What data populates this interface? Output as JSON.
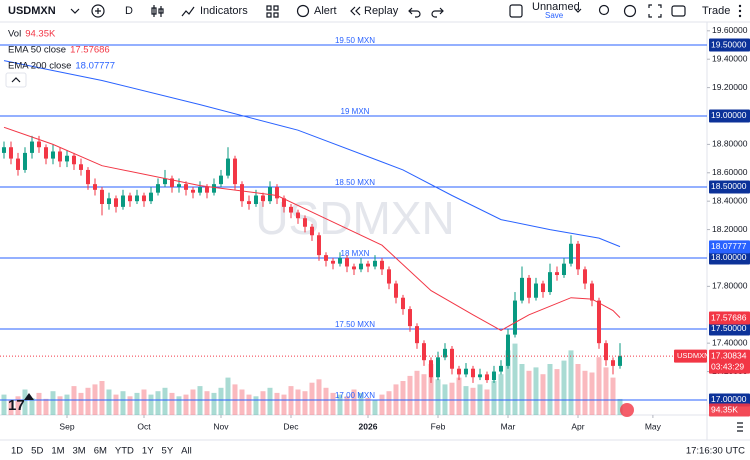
{
  "toolbar": {
    "symbol": "USDMXN",
    "interval": "D",
    "indicators": "Indicators",
    "alert": "Alert",
    "replay": "Replay",
    "layout": "Unnamed",
    "layout_status": "Save",
    "trade": "Trade"
  },
  "range_buttons": [
    "1D",
    "5D",
    "1M",
    "3M",
    "6M",
    "YTD",
    "1Y",
    "5Y",
    "All"
  ],
  "clock": "17:16:30 UTC",
  "chart_data": {
    "type": "candlestick",
    "up_color": "#089981",
    "down_color": "#f23645",
    "xlim": [
      -0.57,
      99.43
    ],
    "xticks": [
      {
        "value": 9,
        "label": "Sep"
      },
      {
        "value": 20,
        "label": "Oct"
      },
      {
        "value": 31,
        "label": "Nov"
      },
      {
        "value": 41,
        "label": "Dec"
      },
      {
        "value": 52,
        "label": "2026"
      },
      {
        "value": 62,
        "label": "Feb"
      },
      {
        "value": 72,
        "label": "Mar"
      },
      {
        "value": 82,
        "label": "Apr"
      },
      {
        "value": 92.7,
        "label": "May"
      }
    ],
    "ylim": [
      16.894,
      19.662
    ],
    "yticks": [
      {
        "value": 19.6,
        "label": "19.60000"
      },
      {
        "value": 19.4,
        "label": "19.40000"
      },
      {
        "value": 19.2,
        "label": "19.20000"
      },
      {
        "value": 18.8,
        "label": "18.80000"
      },
      {
        "value": 18.6,
        "label": "18.60000"
      },
      {
        "value": 18.4,
        "label": "18.40000"
      },
      {
        "value": 18.2,
        "label": "18.20000"
      },
      {
        "value": 17.8,
        "label": "17.80000"
      },
      {
        "value": 17.4,
        "label": "17.40000"
      },
      {
        "value": 17.2,
        "label": "17.20000"
      }
    ],
    "levels": [
      {
        "value": 19.5,
        "label": "19.50 MXN",
        "axis_label": "19.50000"
      },
      {
        "value": 19,
        "label": "19 MXN",
        "axis_label": "19.00000"
      },
      {
        "value": 18.5,
        "label": "18.50 MXN",
        "axis_label": "18.50000"
      },
      {
        "value": 18,
        "label": "18 MXN",
        "axis_label": "18.00000"
      },
      {
        "value": 17.5,
        "label": "17.50 MXN",
        "axis_label": "17.50000"
      },
      {
        "value": 17,
        "label": "17.00 MXN",
        "axis_label": "17.00000"
      }
    ],
    "level_color": "#2962ff",
    "ohlc": [
      [
        18.74,
        18.82,
        18.7,
        18.78
      ],
      [
        18.78,
        18.82,
        18.66,
        18.7
      ],
      [
        18.7,
        18.74,
        18.58,
        18.62
      ],
      [
        18.62,
        18.78,
        18.6,
        18.74
      ],
      [
        18.74,
        18.86,
        18.7,
        18.82
      ],
      [
        18.82,
        18.86,
        18.74,
        18.78
      ],
      [
        18.78,
        18.8,
        18.66,
        18.7
      ],
      [
        18.7,
        18.8,
        18.66,
        18.75
      ],
      [
        18.75,
        18.78,
        18.64,
        18.68
      ],
      [
        18.68,
        18.76,
        18.64,
        18.72
      ],
      [
        18.72,
        18.74,
        18.62,
        18.66
      ],
      [
        18.66,
        18.7,
        18.58,
        18.62
      ],
      [
        18.62,
        18.64,
        18.48,
        18.52
      ],
      [
        18.52,
        18.56,
        18.44,
        18.48
      ],
      [
        18.48,
        18.5,
        18.3,
        18.38
      ],
      [
        18.38,
        18.46,
        18.34,
        18.42
      ],
      [
        18.42,
        18.44,
        18.32,
        18.36
      ],
      [
        18.36,
        18.48,
        18.34,
        18.44
      ],
      [
        18.44,
        18.46,
        18.36,
        18.4
      ],
      [
        18.4,
        18.48,
        18.38,
        18.44
      ],
      [
        18.44,
        18.46,
        18.36,
        18.4
      ],
      [
        18.4,
        18.5,
        18.38,
        18.46
      ],
      [
        18.46,
        18.56,
        18.44,
        18.52
      ],
      [
        18.52,
        18.62,
        18.5,
        18.56
      ],
      [
        18.56,
        18.58,
        18.46,
        18.5
      ],
      [
        18.5,
        18.56,
        18.46,
        18.52
      ],
      [
        18.52,
        18.54,
        18.44,
        18.48
      ],
      [
        18.48,
        18.5,
        18.42,
        18.46
      ],
      [
        18.46,
        18.54,
        18.44,
        18.5
      ],
      [
        18.5,
        18.52,
        18.42,
        18.46
      ],
      [
        18.46,
        18.56,
        18.44,
        18.52
      ],
      [
        18.52,
        18.62,
        18.5,
        18.58
      ],
      [
        18.58,
        18.78,
        18.56,
        18.7
      ],
      [
        18.7,
        18.72,
        18.48,
        18.52
      ],
      [
        18.52,
        18.54,
        18.36,
        18.4
      ],
      [
        18.4,
        18.44,
        18.34,
        18.38
      ],
      [
        18.38,
        18.48,
        18.36,
        18.44
      ],
      [
        18.44,
        18.46,
        18.36,
        18.4
      ],
      [
        18.4,
        18.54,
        18.38,
        18.5
      ],
      [
        18.5,
        18.52,
        18.38,
        18.42
      ],
      [
        18.42,
        18.44,
        18.32,
        18.36
      ],
      [
        18.36,
        18.38,
        18.28,
        18.32
      ],
      [
        18.32,
        18.34,
        18.24,
        18.28
      ],
      [
        18.28,
        18.3,
        18.18,
        18.22
      ],
      [
        18.22,
        18.24,
        18.12,
        18.16
      ],
      [
        18.16,
        18.18,
        17.98,
        18.02
      ],
      [
        18.02,
        18.04,
        17.94,
        17.98
      ],
      [
        17.98,
        18.0,
        17.92,
        17.96
      ],
      [
        17.96,
        18.04,
        17.94,
        18.0
      ],
      [
        18.0,
        18.02,
        17.9,
        17.94
      ],
      [
        17.94,
        17.96,
        17.88,
        17.92
      ],
      [
        17.92,
        18.0,
        17.9,
        17.96
      ],
      [
        17.96,
        17.98,
        17.9,
        17.94
      ],
      [
        17.94,
        18.02,
        17.92,
        17.98
      ],
      [
        17.98,
        18.0,
        17.88,
        17.92
      ],
      [
        17.92,
        17.94,
        17.78,
        17.82
      ],
      [
        17.82,
        17.84,
        17.68,
        17.72
      ],
      [
        17.72,
        17.74,
        17.6,
        17.64
      ],
      [
        17.64,
        17.66,
        17.48,
        17.52
      ],
      [
        17.52,
        17.54,
        17.36,
        17.4
      ],
      [
        17.4,
        17.42,
        17.24,
        17.28
      ],
      [
        17.28,
        17.3,
        17.12,
        17.16
      ],
      [
        17.16,
        17.34,
        17.14,
        17.3
      ],
      [
        17.3,
        17.4,
        17.28,
        17.36
      ],
      [
        17.36,
        17.38,
        17.18,
        17.22
      ],
      [
        17.22,
        17.24,
        17.14,
        17.18
      ],
      [
        17.18,
        17.26,
        17.16,
        17.22
      ],
      [
        17.22,
        17.24,
        17.12,
        17.16
      ],
      [
        17.16,
        17.22,
        17.14,
        17.18
      ],
      [
        17.18,
        17.2,
        17.12,
        17.14
      ],
      [
        17.14,
        17.24,
        17.12,
        17.2
      ],
      [
        17.2,
        17.28,
        17.18,
        17.24
      ],
      [
        17.24,
        17.5,
        17.22,
        17.46
      ],
      [
        17.46,
        17.76,
        17.44,
        17.7
      ],
      [
        17.7,
        17.94,
        17.68,
        17.86
      ],
      [
        17.86,
        17.88,
        17.68,
        17.72
      ],
      [
        17.72,
        17.86,
        17.7,
        17.82
      ],
      [
        17.82,
        17.84,
        17.72,
        17.76
      ],
      [
        17.76,
        17.96,
        17.74,
        17.9
      ],
      [
        17.9,
        17.94,
        17.84,
        17.88
      ],
      [
        17.88,
        18.0,
        17.86,
        17.96
      ],
      [
        17.96,
        18.16,
        17.94,
        18.1
      ],
      [
        18.1,
        18.12,
        17.88,
        17.92
      ],
      [
        17.92,
        17.94,
        17.78,
        17.82
      ],
      [
        17.82,
        17.84,
        17.66,
        17.7
      ],
      [
        17.7,
        17.72,
        17.36,
        17.4
      ],
      [
        17.4,
        17.42,
        17.24,
        17.28
      ],
      [
        17.28,
        17.3,
        17.18,
        17.24
      ],
      [
        17.24,
        17.4,
        17.22,
        17.31
      ]
    ],
    "volume": {
      "name": "Vol",
      "ylim": [
        0,
        500
      ],
      "up_color": "rgba(8,153,129,0.35)",
      "down_color": "rgba(242,54,69,0.35)",
      "values": [
        120,
        90,
        110,
        150,
        100,
        130,
        95,
        140,
        110,
        120,
        170,
        130,
        160,
        180,
        200,
        150,
        120,
        140,
        110,
        130,
        150,
        120,
        140,
        160,
        130,
        110,
        120,
        150,
        170,
        140,
        130,
        160,
        220,
        180,
        150,
        120,
        110,
        140,
        160,
        130,
        120,
        170,
        150,
        140,
        190,
        210,
        160,
        130,
        120,
        110,
        150,
        130,
        100,
        90,
        120,
        140,
        180,
        200,
        230,
        260,
        240,
        300,
        210,
        180,
        190,
        220,
        170,
        160,
        180,
        150,
        200,
        240,
        380,
        420,
        300,
        260,
        280,
        240,
        300,
        270,
        320,
        380,
        300,
        260,
        250,
        340,
        280,
        220,
        94.35
      ],
      "last": {
        "value": 94.35,
        "label": "94.35K"
      }
    },
    "series": [
      {
        "name": "EMA 50 close",
        "color": "#f23645",
        "last": 17.57686,
        "x": [
          0,
          7,
          14,
          28,
          39,
          45,
          54,
          61,
          67,
          71,
          75,
          81,
          84,
          87,
          88
        ],
        "values": [
          18.92,
          18.8,
          18.65,
          18.51,
          18.44,
          18.3,
          18.09,
          17.77,
          17.6,
          17.49,
          17.6,
          17.72,
          17.71,
          17.63,
          17.58
        ]
      },
      {
        "name": "EMA 200 close",
        "color": "#2962ff",
        "last": 18.07777,
        "x": [
          0,
          14,
          28,
          42,
          57,
          64,
          71,
          78,
          85,
          88
        ],
        "values": [
          19.39,
          19.25,
          19.08,
          18.9,
          18.62,
          18.44,
          18.27,
          18.2,
          18.14,
          18.08
        ]
      }
    ],
    "last_price": {
      "value": 17.30834,
      "countdown": "03:43:29",
      "color": "#f23645"
    }
  }
}
